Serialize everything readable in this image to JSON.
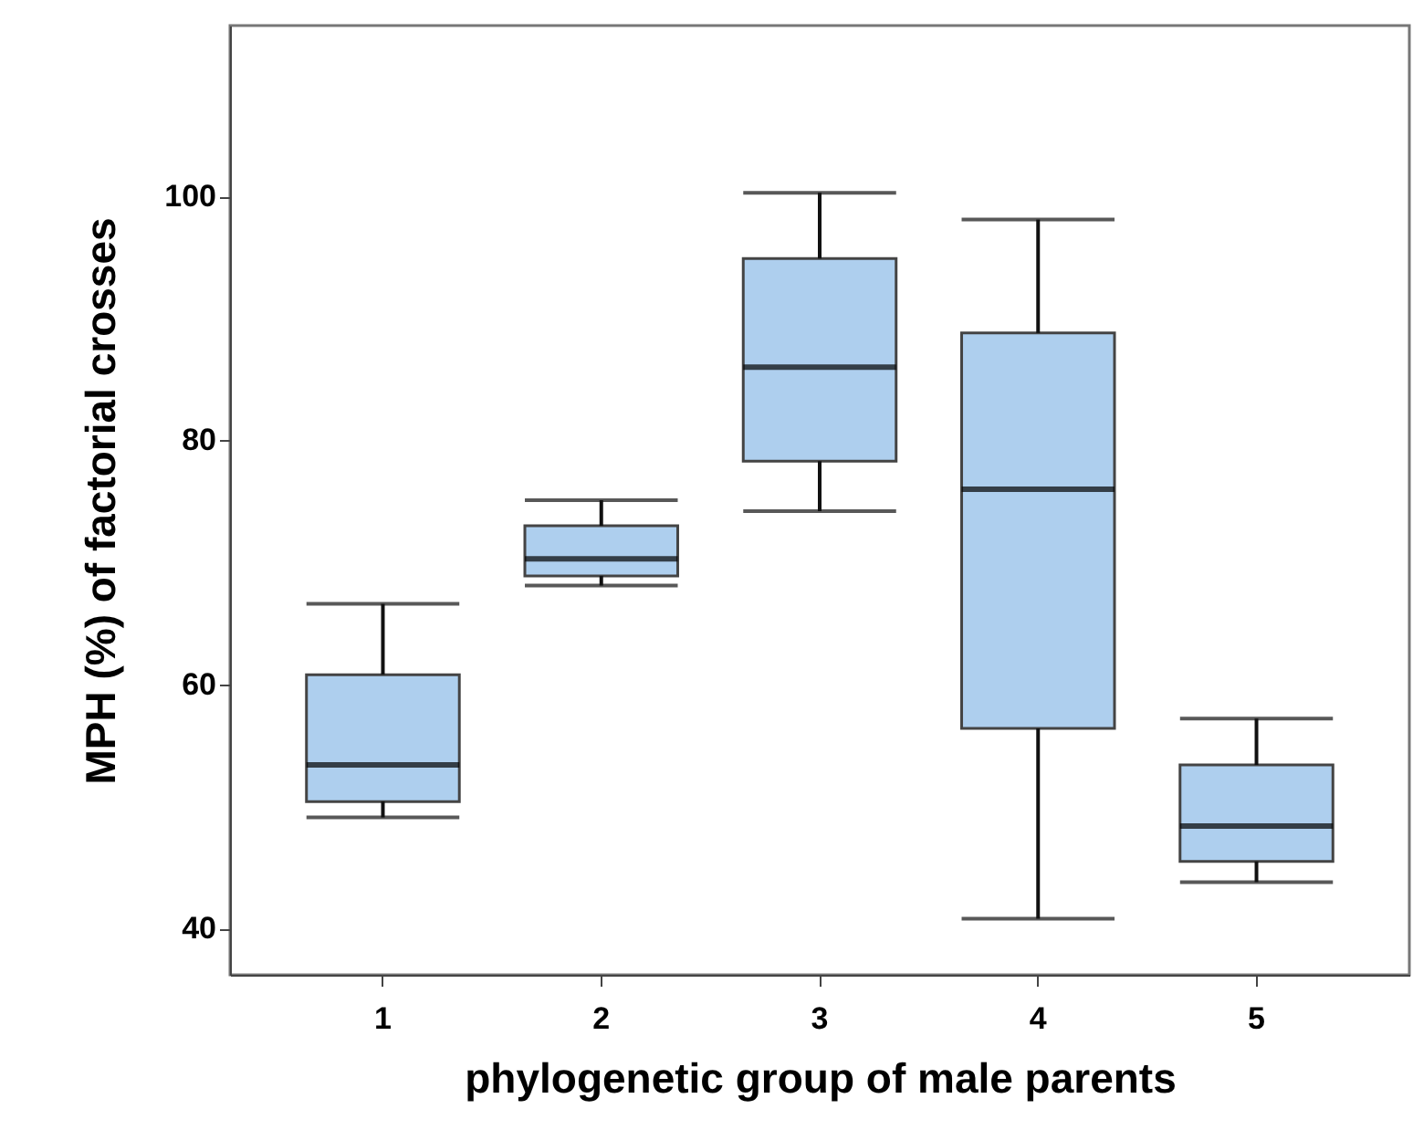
{
  "chart_data": {
    "type": "box",
    "xlabel": "phylogenetic group of male parents",
    "ylabel": "MPH (%) of factorial crosses",
    "categories": [
      "1",
      "2",
      "3",
      "4",
      "5"
    ],
    "boxes": [
      {
        "low": 49.1,
        "q1": 50.4,
        "median": 53.4,
        "q3": 60.8,
        "high": 66.6
      },
      {
        "low": 68.1,
        "q1": 68.9,
        "median": 70.3,
        "q3": 73.0,
        "high": 75.1
      },
      {
        "low": 74.2,
        "q1": 78.3,
        "median": 86.0,
        "q3": 94.9,
        "high": 100.3
      },
      {
        "low": 40.8,
        "q1": 56.4,
        "median": 76.0,
        "q3": 88.8,
        "high": 98.1
      },
      {
        "low": 43.8,
        "q1": 45.5,
        "median": 48.4,
        "q3": 53.4,
        "high": 57.2
      }
    ],
    "color": "#aecfee",
    "ylim": [
      36.2,
      114
    ],
    "yticks": [
      40,
      60,
      80,
      100
    ],
    "grid": false
  }
}
